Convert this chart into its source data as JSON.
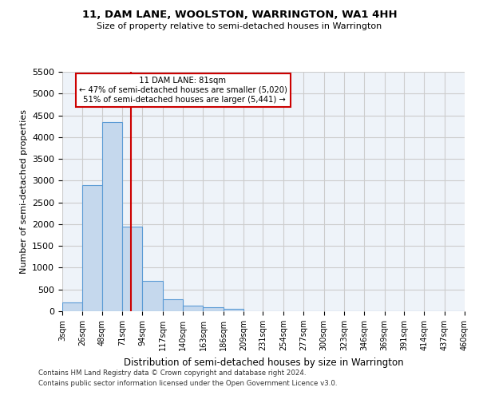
{
  "title": "11, DAM LANE, WOOLSTON, WARRINGTON, WA1 4HH",
  "subtitle": "Size of property relative to semi-detached houses in Warrington",
  "xlabel": "Distribution of semi-detached houses by size in Warrington",
  "ylabel": "Number of semi-detached properties",
  "footnote1": "Contains HM Land Registry data © Crown copyright and database right 2024.",
  "footnote2": "Contains public sector information licensed under the Open Government Licence v3.0.",
  "property_size": 81,
  "property_label": "11 DAM LANE: 81sqm",
  "pct_smaller": 47,
  "n_smaller": 5020,
  "pct_larger": 51,
  "n_larger": 5441,
  "bar_color": "#c5d8ed",
  "bar_edge_color": "#5b9bd5",
  "marker_color": "#cc0000",
  "annotation_box_color": "#cc0000",
  "background_color": "#ffffff",
  "grid_color": "#cccccc",
  "ylim": [
    0,
    5500
  ],
  "yticks": [
    0,
    500,
    1000,
    1500,
    2000,
    2500,
    3000,
    3500,
    4000,
    4500,
    5000,
    5500
  ],
  "bin_edges": [
    3,
    26,
    48,
    71,
    94,
    117,
    140,
    163,
    186,
    209,
    231,
    254,
    277,
    300,
    323,
    346,
    369,
    391,
    414,
    437,
    460
  ],
  "bin_labels": [
    "3sqm",
    "26sqm",
    "48sqm",
    "71sqm",
    "94sqm",
    "117sqm",
    "140sqm",
    "163sqm",
    "186sqm",
    "209sqm",
    "231sqm",
    "254sqm",
    "277sqm",
    "300sqm",
    "323sqm",
    "346sqm",
    "369sqm",
    "391sqm",
    "414sqm",
    "437sqm",
    "460sqm"
  ],
  "counts": [
    200,
    2900,
    4350,
    1950,
    700,
    270,
    120,
    90,
    55,
    0,
    0,
    0,
    0,
    0,
    0,
    0,
    0,
    0,
    0,
    0
  ]
}
